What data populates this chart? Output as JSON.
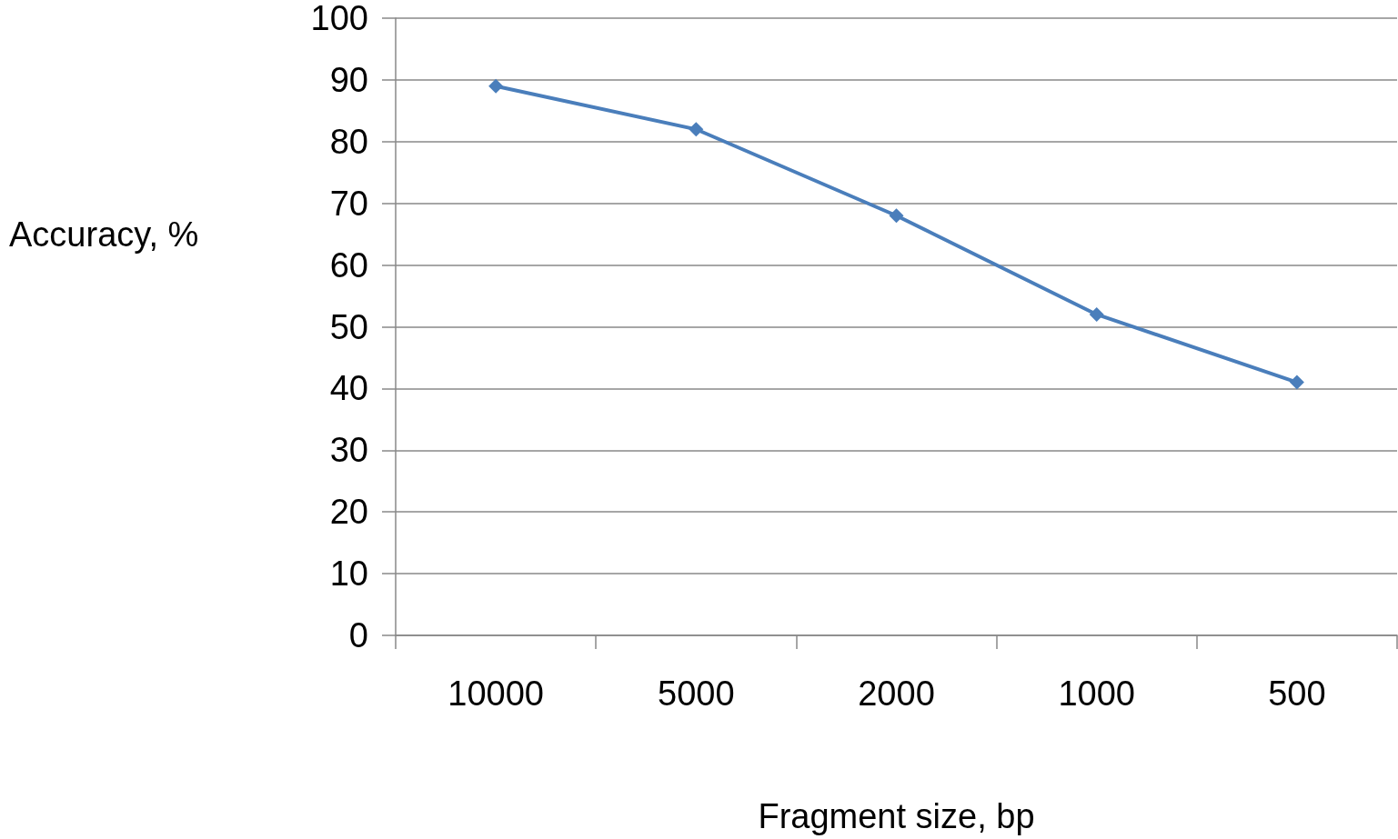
{
  "chart_data": {
    "type": "line",
    "xlabel": "Fragment size, bp",
    "ylabel": "Accuracy, %",
    "categories": [
      "10000",
      "5000",
      "2000",
      "1000",
      "500"
    ],
    "series": [
      {
        "color": "#4a7ebb",
        "values": [
          89,
          82,
          68,
          52,
          41
        ]
      }
    ],
    "ylim": [
      0,
      100
    ],
    "yticks": [
      0,
      10,
      20,
      30,
      40,
      50,
      60,
      70,
      80,
      90,
      100
    ],
    "grid": "y",
    "marker": "diamond",
    "line_style": "solid"
  }
}
